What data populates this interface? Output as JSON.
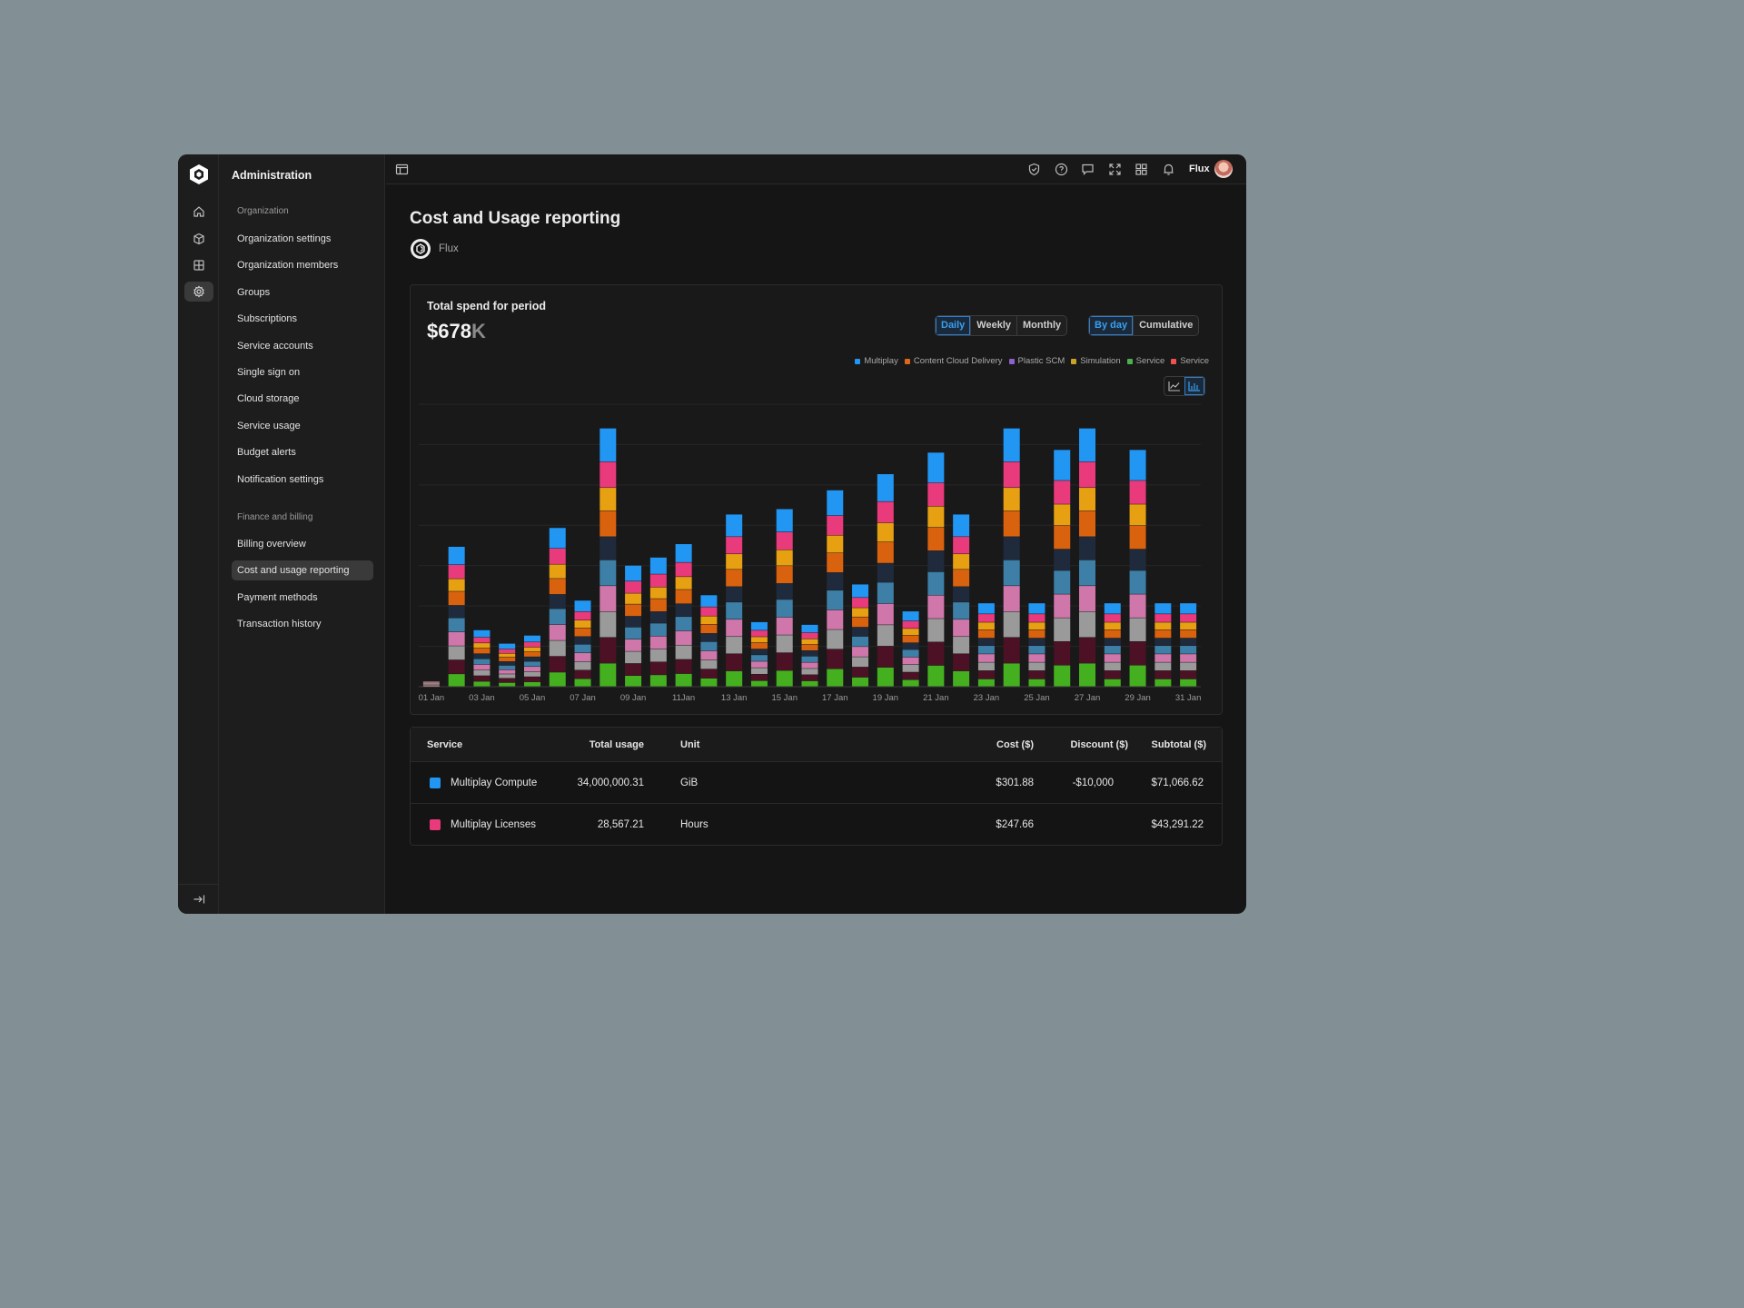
{
  "sidebar": {
    "title": "Administration",
    "sections": [
      {
        "label": "Organization"
      },
      {
        "label": "Finance and billing"
      }
    ],
    "items": [
      {
        "label": "Organization settings"
      },
      {
        "label": "Organization members"
      },
      {
        "label": "Groups"
      },
      {
        "label": "Subscriptions"
      },
      {
        "label": "Service accounts"
      },
      {
        "label": "Single sign on"
      },
      {
        "label": "Cloud storage"
      },
      {
        "label": "Service usage"
      },
      {
        "label": "Budget alerts"
      },
      {
        "label": "Notification settings"
      },
      {
        "label": "Billing overview"
      },
      {
        "label": "Cost and usage reporting",
        "active": true
      },
      {
        "label": "Payment methods"
      },
      {
        "label": "Transaction history"
      }
    ]
  },
  "topbar": {
    "user_name": "Flux",
    "icons": [
      "sidebar-toggle-icon",
      "shield-icon",
      "help-icon",
      "message-icon",
      "expand-icon",
      "apps-icon",
      "bell-icon"
    ]
  },
  "page": {
    "title": "Cost and Usage reporting",
    "org_name": "Flux"
  },
  "summary": {
    "label": "Total spend for period",
    "value_main": "$678",
    "value_unit": "K",
    "period_options": [
      "Daily",
      "Weekly",
      "Monthly"
    ],
    "period_selected": "Daily",
    "mode_options": [
      "By day",
      "Cumulative"
    ],
    "mode_selected": "By day",
    "chart_view_selected": "bar"
  },
  "colors": {
    "accent": "#2d8ff0",
    "background": "#151515"
  },
  "chart_data": {
    "type": "bar",
    "stacked": true,
    "legend_position": "top-right",
    "legend": [
      {
        "name": "Multiplay",
        "color": "#2196f3"
      },
      {
        "name": "Content Cloud Delivery",
        "color": "#e0661c"
      },
      {
        "name": "Plastic SCM",
        "color": "#8b62c9"
      },
      {
        "name": "Simulation",
        "color": "#c9a227"
      },
      {
        "name": "Service",
        "color": "#4caf50"
      },
      {
        "name": "Service",
        "color": "#ef5350"
      }
    ],
    "x_tick_labels": [
      "01 Jan",
      "03 Jan",
      "05 Jan",
      "07 Jan",
      "09 Jan",
      "11Jan",
      "13 Jan",
      "15 Jan",
      "17 Jan",
      "19 Jan",
      "21 Jan",
      "23 Jan",
      "25 Jan",
      "27 Jan",
      "29 Jan",
      "31 Jan"
    ],
    "x": [
      "01 Jan",
      "02 Jan",
      "03 Jan",
      "04 Jan",
      "05 Jan",
      "06 Jan",
      "07 Jan",
      "08 Jan",
      "09 Jan",
      "10 Jan",
      "11 Jan",
      "12 Jan",
      "13 Jan",
      "14 Jan",
      "15 Jan",
      "16 Jan",
      "17 Jan",
      "18 Jan",
      "19 Jan",
      "20 Jan",
      "21 Jan",
      "22 Jan",
      "23 Jan",
      "24 Jan",
      "25 Jan",
      "26 Jan",
      "27 Jan",
      "28 Jan",
      "29 Jan",
      "30 Jan",
      "31 Jan"
    ],
    "segment_colors": [
      "#45b01f",
      "#4d1126",
      "#9a9a9a",
      "#cf76aa",
      "#3d7fa6",
      "#1f2b3d",
      "#d9620f",
      "#e6a012",
      "#e93a7b",
      "#2196f3"
    ],
    "totals": [
      2,
      52,
      21,
      16,
      19,
      59,
      32,
      96,
      45,
      48,
      53,
      34,
      64,
      24,
      66,
      23,
      73,
      38,
      79,
      28,
      87,
      64,
      31,
      96,
      31,
      88,
      96,
      31,
      88,
      31,
      31
    ],
    "ylim": [
      0,
      105
    ],
    "grid": true,
    "ylabel": "",
    "xlabel": "",
    "title": ""
  },
  "table": {
    "headers": {
      "service": "Service",
      "total_usage": "Total usage",
      "unit": "Unit",
      "cost": "Cost ($)",
      "discount": "Discount ($)",
      "subtotal": "Subtotal ($)"
    },
    "rows": [
      {
        "color": "#2196f3",
        "service": "Multiplay Compute",
        "total_usage": "34,000,000.31",
        "unit": "GiB",
        "cost": "$301.88",
        "discount": "-$10,000",
        "subtotal": "$71,066.62"
      },
      {
        "color": "#e93a7b",
        "service": "Multiplay Licenses",
        "total_usage": "28,567.21",
        "unit": "Hours",
        "cost": "$247.66",
        "discount": "",
        "subtotal": "$43,291.22"
      }
    ]
  }
}
